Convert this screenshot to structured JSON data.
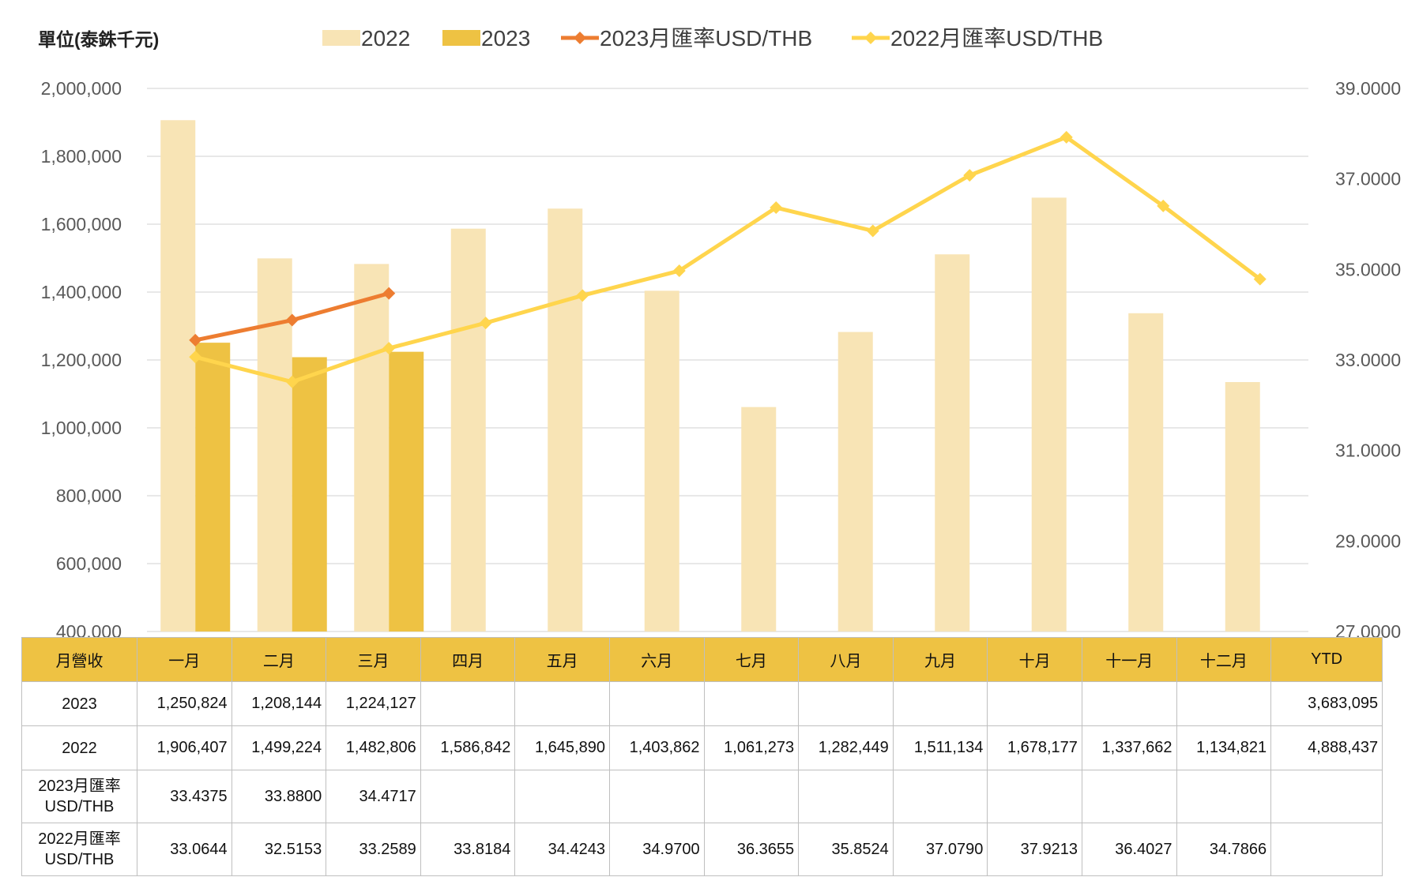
{
  "chart_data": {
    "type": "bar+line",
    "unit_label": "單位(泰銖千元)",
    "categories": [
      "一月",
      "二月",
      "三月",
      "四月",
      "五月",
      "六月",
      "七月",
      "八月",
      "九月",
      "十月",
      "十一月",
      "十二月"
    ],
    "series": [
      {
        "name": "2022",
        "kind": "bar",
        "axis": "left",
        "color": "#f8e4b5",
        "values": [
          1906407,
          1499224,
          1482806,
          1586842,
          1645890,
          1403862,
          1061273,
          1282449,
          1511134,
          1678177,
          1337662,
          1134821
        ]
      },
      {
        "name": "2023",
        "kind": "bar",
        "axis": "left",
        "color": "#eec243",
        "values": [
          1250824,
          1208144,
          1224127,
          null,
          null,
          null,
          null,
          null,
          null,
          null,
          null,
          null
        ]
      },
      {
        "name": "2023月匯率USD/THB",
        "kind": "line",
        "axis": "right",
        "color": "#ed7d31",
        "values": [
          33.4375,
          33.88,
          34.4717,
          null,
          null,
          null,
          null,
          null,
          null,
          null,
          null,
          null
        ]
      },
      {
        "name": "2022月匯率USD/THB",
        "kind": "line",
        "axis": "right",
        "color": "#ffd54d",
        "values": [
          33.0644,
          32.5153,
          33.2589,
          33.8184,
          34.4243,
          34.97,
          36.3655,
          35.8524,
          37.079,
          37.9213,
          36.4027,
          34.7866
        ]
      }
    ],
    "y_left": {
      "min": 400000,
      "max": 2000000,
      "ticks": [
        "2,000,000",
        "1,800,000",
        "1,600,000",
        "1,400,000",
        "1,200,000",
        "1,000,000",
        "800,000",
        "600,000",
        "400,000"
      ]
    },
    "y_right": {
      "min": 27,
      "max": 39,
      "ticks": [
        "39.0000",
        "37.0000",
        "35.0000",
        "33.0000",
        "31.0000",
        "29.0000",
        "27.0000"
      ]
    },
    "grid": true,
    "legend_position": "top"
  },
  "table": {
    "corner": "月營收",
    "months": [
      "一月",
      "二月",
      "三月",
      "四月",
      "五月",
      "六月",
      "七月",
      "八月",
      "九月",
      "十月",
      "十一月",
      "十二月"
    ],
    "ytd_header": "YTD",
    "rows": [
      {
        "label": "2023",
        "cells": [
          "1,250,824",
          "1,208,144",
          "1,224,127",
          "",
          "",
          "",
          "",
          "",
          "",
          "",
          "",
          ""
        ],
        "ytd": "3,683,095"
      },
      {
        "label": "2022",
        "cells": [
          "1,906,407",
          "1,499,224",
          "1,482,806",
          "1,586,842",
          "1,645,890",
          "1,403,862",
          "1,061,273",
          "1,282,449",
          "1,511,134",
          "1,678,177",
          "1,337,662",
          "1,134,821"
        ],
        "ytd": "4,888,437"
      },
      {
        "label": "2023月匯率 USD/THB",
        "cells": [
          "33.4375",
          "33.8800",
          "34.4717",
          "",
          "",
          "",
          "",
          "",
          "",
          "",
          "",
          ""
        ],
        "ytd": ""
      },
      {
        "label": "2022月匯率 USD/THB",
        "cells": [
          "33.0644",
          "32.5153",
          "33.2589",
          "33.8184",
          "34.4243",
          "34.9700",
          "36.3655",
          "35.8524",
          "37.0790",
          "37.9213",
          "36.4027",
          "34.7866"
        ],
        "ytd": ""
      }
    ]
  }
}
